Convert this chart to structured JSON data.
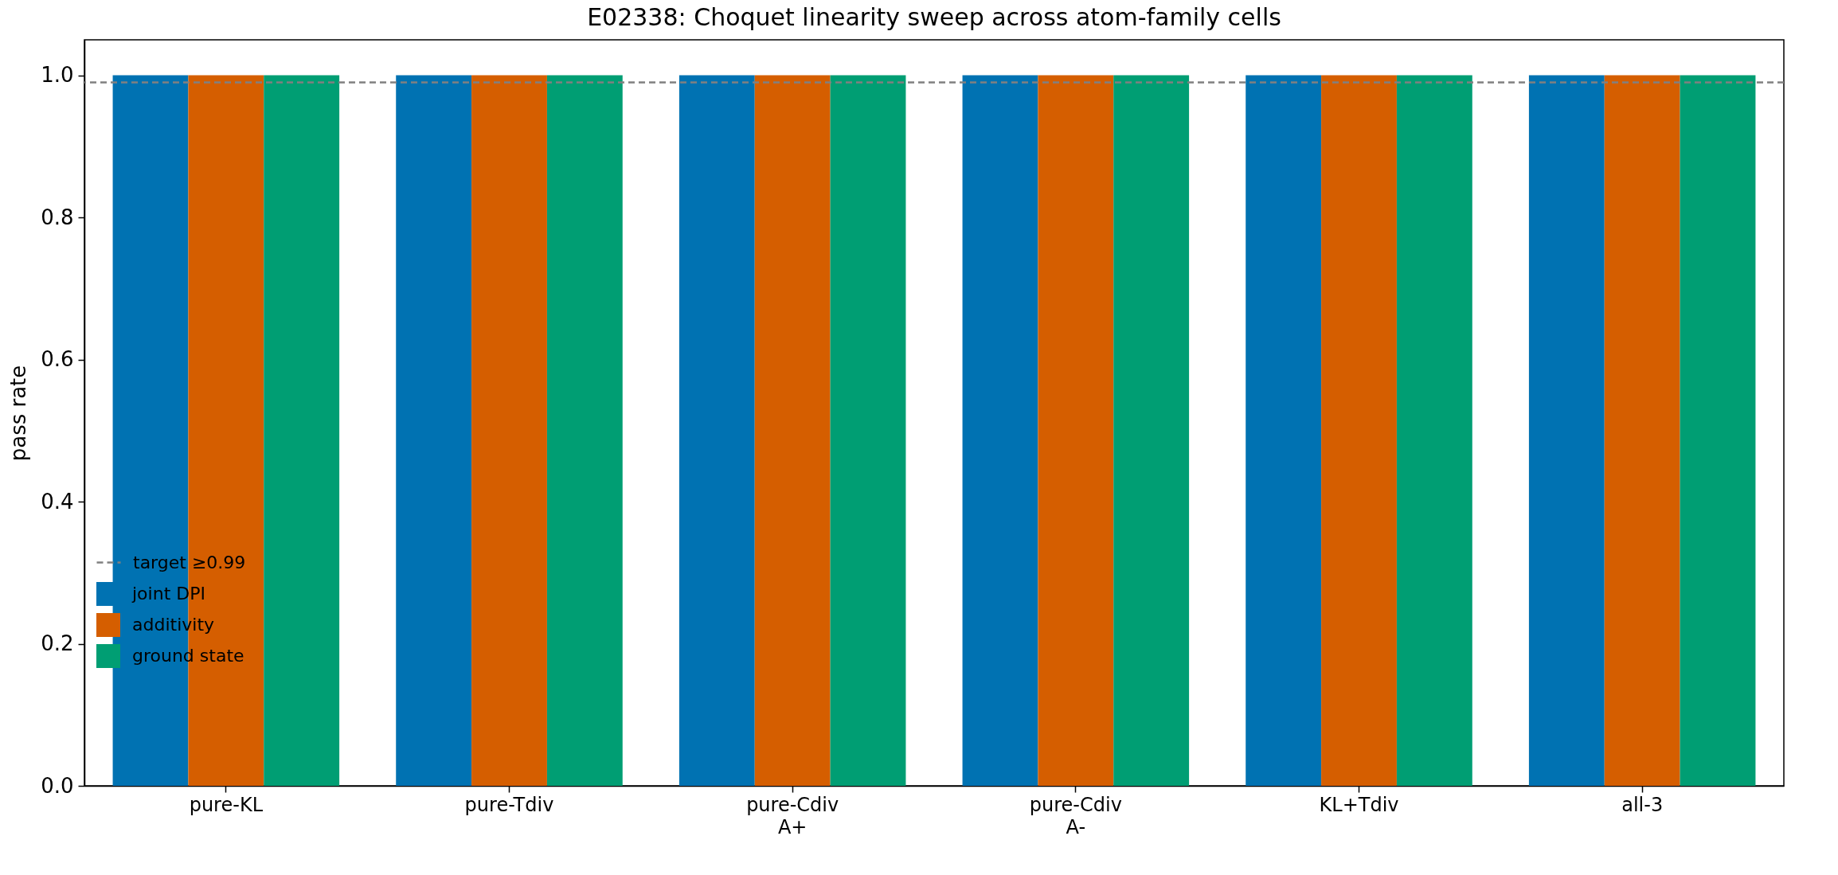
{
  "chart_data": {
    "type": "bar",
    "title": "E02338: Choquet linearity sweep across atom-family cells",
    "ylabel": "pass rate",
    "categories": [
      "pure-KL",
      "pure-Tdiv",
      "pure-Cdiv\nA+",
      "pure-Cdiv\nA-",
      "KL+Tdiv",
      "all-3"
    ],
    "series": [
      {
        "name": "joint DPI",
        "color": "#0072b2",
        "values": [
          1.0,
          1.0,
          1.0,
          1.0,
          1.0,
          1.0
        ]
      },
      {
        "name": "additivity",
        "color": "#d55e00",
        "values": [
          1.0,
          1.0,
          1.0,
          1.0,
          1.0,
          1.0
        ]
      },
      {
        "name": "ground state",
        "color": "#009e73",
        "values": [
          1.0,
          1.0,
          1.0,
          1.0,
          1.0,
          1.0
        ]
      }
    ],
    "ylim": [
      0,
      1.05
    ],
    "yticks": [
      {
        "value": 0,
        "label": "0.0"
      },
      0.2,
      0.4,
      0.6,
      0.8,
      {
        "value": 1,
        "label": "1.0"
      }
    ],
    "ref_lines": [
      {
        "axis": "y",
        "value": 0.99,
        "label": "target ≥0.99",
        "color": "#808080",
        "line_style": "dashed"
      }
    ],
    "grid": false,
    "legend": "bottom left"
  }
}
